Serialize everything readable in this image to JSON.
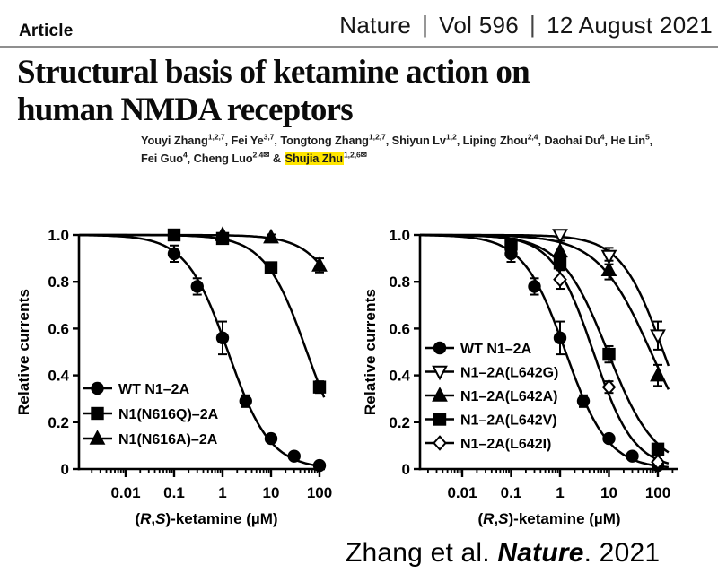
{
  "header": {
    "article_label": "Article",
    "journal": "Nature",
    "volume": "Vol 596",
    "date": "12 August 2021",
    "separator": "|"
  },
  "title": {
    "line1": "Structural basis of ketamine action on",
    "line2": "human NMDA receptors"
  },
  "authors": {
    "highlight_color": "#ffe600",
    "line1": [
      {
        "t": "Youyi Zhang"
      },
      {
        "t": "1,2,7",
        "sup": true
      },
      {
        "t": ", Fei Ye"
      },
      {
        "t": "3,7",
        "sup": true
      },
      {
        "t": ", Tongtong Zhang"
      },
      {
        "t": "1,2,7",
        "sup": true
      },
      {
        "t": ", Shiyun Lv"
      },
      {
        "t": "1,2",
        "sup": true
      },
      {
        "t": ", Liping Zhou"
      },
      {
        "t": "2,4",
        "sup": true
      },
      {
        "t": ", Daohai Du"
      },
      {
        "t": "4",
        "sup": true
      },
      {
        "t": ", He Lin"
      },
      {
        "t": "5",
        "sup": true
      },
      {
        "t": ","
      }
    ],
    "line2": [
      {
        "t": "Fei Guo"
      },
      {
        "t": "4",
        "sup": true
      },
      {
        "t": ", Cheng Luo"
      },
      {
        "t": "2,4✉",
        "sup": true
      },
      {
        "t": " & "
      },
      {
        "t": "Shujia Zhu",
        "highlight": true
      },
      {
        "t": "1,2,6✉",
        "sup": true
      }
    ]
  },
  "citation": {
    "authors": "Zhang et al. ",
    "journal": "Nature",
    "suffix": ". 2021"
  },
  "chart_data": [
    {
      "id": "left",
      "type": "line",
      "xscale": "log",
      "xlabel": "(R,S)-ketamine (µM)",
      "xlabel_rich": [
        {
          "t": "("
        },
        {
          "t": "R",
          "italic": true
        },
        {
          "t": ","
        },
        {
          "t": "S",
          "italic": true
        },
        {
          "t": ")-ketamine (µM)"
        }
      ],
      "ylabel": "Relative currents",
      "x_ticks": [
        0.01,
        0.1,
        1,
        10,
        100
      ],
      "x_tick_labels": [
        "0.01",
        "0.1",
        "1",
        "10",
        "100"
      ],
      "y_ticks": [
        0,
        0.2,
        0.4,
        0.6,
        0.8,
        1.0
      ],
      "y_tick_labels": [
        "0",
        "0.2",
        "0.4",
        "0.6",
        "0.8",
        "1.0"
      ],
      "xlim": [
        0.0011,
        130
      ],
      "ylim": [
        0,
        1
      ],
      "grid": false,
      "legend_position": "inside-lower-left",
      "series": [
        {
          "name": "WT N1–2A",
          "marker": "circle",
          "fill": "filled",
          "x": [
            0.1,
            0.3,
            1,
            3,
            10,
            30,
            100
          ],
          "y": [
            0.92,
            0.78,
            0.56,
            0.29,
            0.13,
            0.055,
            0.015
          ],
          "err": [
            0.035,
            0.035,
            0.07,
            0.025,
            0.015,
            0.012,
            0.01
          ],
          "curve": {
            "ic50": 1.3,
            "hill": 1.0
          }
        },
        {
          "name": "N1(N616Q)–2A",
          "marker": "square",
          "fill": "filled",
          "x": [
            0.1,
            1,
            10,
            100
          ],
          "y": [
            1.0,
            0.985,
            0.86,
            0.35
          ],
          "err": [
            0.012,
            0.012,
            0.02,
            0.025
          ],
          "curve": {
            "ic50": 55,
            "hill": 1.0
          }
        },
        {
          "name": "N1(N616A)–2A",
          "marker": "triangle-up",
          "fill": "filled",
          "x": [
            1,
            10,
            100
          ],
          "y": [
            1.0,
            0.99,
            0.87
          ],
          "err": [
            0.008,
            0.012,
            0.03
          ],
          "curve": {
            "ic50": 700,
            "hill": 1.0
          }
        }
      ]
    },
    {
      "id": "right",
      "type": "line",
      "xscale": "log",
      "xlabel": "(R,S)-ketamine (µM)",
      "xlabel_rich": [
        {
          "t": "("
        },
        {
          "t": "R",
          "italic": true
        },
        {
          "t": ","
        },
        {
          "t": "S",
          "italic": true
        },
        {
          "t": ")-ketamine (µM)"
        }
      ],
      "ylabel": "Relative currents",
      "x_ticks": [
        0.01,
        0.1,
        1,
        10,
        100
      ],
      "x_tick_labels": [
        "0.01",
        "0.1",
        "1",
        "10",
        "100"
      ],
      "y_ticks": [
        0,
        0.2,
        0.4,
        0.6,
        0.8,
        1.0
      ],
      "y_tick_labels": [
        "0",
        "0.2",
        "0.4",
        "0.6",
        "0.8",
        "1.0"
      ],
      "xlim": [
        0.00137,
        200
      ],
      "ylim": [
        0,
        1
      ],
      "grid": false,
      "legend_position": "inside-middle-left",
      "series": [
        {
          "name": "WT N1–2A",
          "marker": "circle",
          "fill": "filled",
          "x": [
            0.1,
            0.3,
            1,
            3,
            10,
            30,
            100
          ],
          "y": [
            0.92,
            0.78,
            0.56,
            0.29,
            0.13,
            0.055,
            0.015
          ],
          "err": [
            0.035,
            0.035,
            0.07,
            0.025,
            0.015,
            0.012,
            0.01
          ],
          "curve": {
            "ic50": 1.3,
            "hill": 1.0
          }
        },
        {
          "name": "N1–2A(L642G)",
          "marker": "triangle-down",
          "fill": "open",
          "x": [
            1,
            10,
            100
          ],
          "y": [
            1.0,
            0.91,
            0.57
          ],
          "err": [
            0.01,
            0.035,
            0.06
          ],
          "curve": {
            "ic50": 130,
            "hill": 1.0
          }
        },
        {
          "name": "N1–2A(L642A)",
          "marker": "triangle-up",
          "fill": "filled",
          "x": [
            1,
            10,
            100
          ],
          "y": [
            0.93,
            0.85,
            0.4
          ],
          "err": [
            0.045,
            0.04,
            0.045
          ],
          "curve": {
            "ic50": 72,
            "hill": 0.8
          }
        },
        {
          "name": "N1–2A(L642V)",
          "marker": "square",
          "fill": "filled",
          "x": [
            0.1,
            1,
            10,
            100
          ],
          "y": [
            0.96,
            0.88,
            0.49,
            0.085
          ],
          "err": [
            0.025,
            0.03,
            0.035,
            0.02
          ],
          "curve": {
            "ic50": 9.5,
            "hill": 0.9
          }
        },
        {
          "name": "N1–2A(L642I)",
          "marker": "diamond",
          "fill": "open",
          "x": [
            1,
            10,
            100
          ],
          "y": [
            0.81,
            0.35,
            0.03
          ],
          "err": [
            0.04,
            0.025,
            0.012
          ],
          "curve": {
            "ic50": 4.8,
            "hill": 1.05
          }
        }
      ]
    }
  ]
}
